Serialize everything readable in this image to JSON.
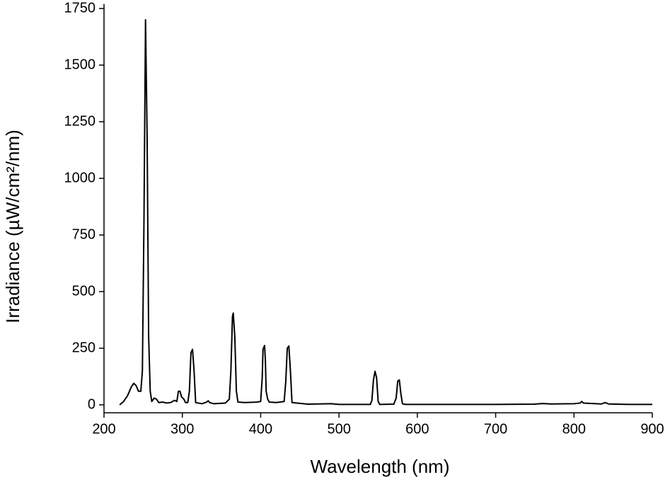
{
  "chart_data": {
    "type": "line",
    "x_label": "Wavelength (nm)",
    "y_label": "Irradiance (µW/cm²/nm)",
    "color": "#000000",
    "x": [
      220,
      225,
      230,
      235,
      238,
      241,
      244,
      247,
      249,
      251,
      253,
      255,
      257,
      259,
      261,
      264,
      267,
      270,
      275,
      280,
      285,
      290,
      293,
      295,
      297,
      299,
      302,
      304,
      307,
      309,
      311,
      313,
      315,
      317,
      325,
      331,
      333,
      335,
      340,
      355,
      360,
      362,
      364,
      365,
      367,
      369,
      371,
      380,
      395,
      400,
      402,
      403,
      405,
      406,
      407,
      409,
      411,
      420,
      430,
      432,
      434,
      436,
      438,
      440,
      460,
      490,
      500,
      540,
      542,
      544,
      546,
      548,
      550,
      552,
      570,
      573,
      575,
      577,
      579,
      581,
      585,
      700,
      750,
      760,
      770,
      800,
      808,
      810,
      812,
      835,
      840,
      844,
      870,
      900
    ],
    "values": [
      0,
      15,
      40,
      80,
      95,
      85,
      60,
      60,
      150,
      800,
      1700,
      1200,
      300,
      60,
      15,
      30,
      25,
      10,
      12,
      8,
      10,
      20,
      15,
      60,
      60,
      35,
      25,
      10,
      10,
      60,
      230,
      245,
      150,
      10,
      5,
      12,
      18,
      10,
      5,
      8,
      25,
      150,
      390,
      405,
      300,
      60,
      12,
      10,
      12,
      15,
      120,
      245,
      262,
      200,
      60,
      25,
      12,
      10,
      15,
      100,
      250,
      260,
      150,
      10,
      3,
      5,
      2,
      2,
      20,
      110,
      148,
      120,
      15,
      2,
      3,
      30,
      105,
      110,
      50,
      5,
      2,
      2,
      3,
      6,
      4,
      5,
      8,
      15,
      8,
      4,
      10,
      4,
      2,
      2
    ],
    "xlim": [
      200,
      900
    ],
    "ylim": [
      -35,
      1770
    ],
    "xticks": [
      200,
      300,
      400,
      500,
      600,
      700,
      800,
      900
    ],
    "yticks": [
      0,
      250,
      500,
      750,
      1000,
      1250,
      1500,
      1750
    ]
  }
}
